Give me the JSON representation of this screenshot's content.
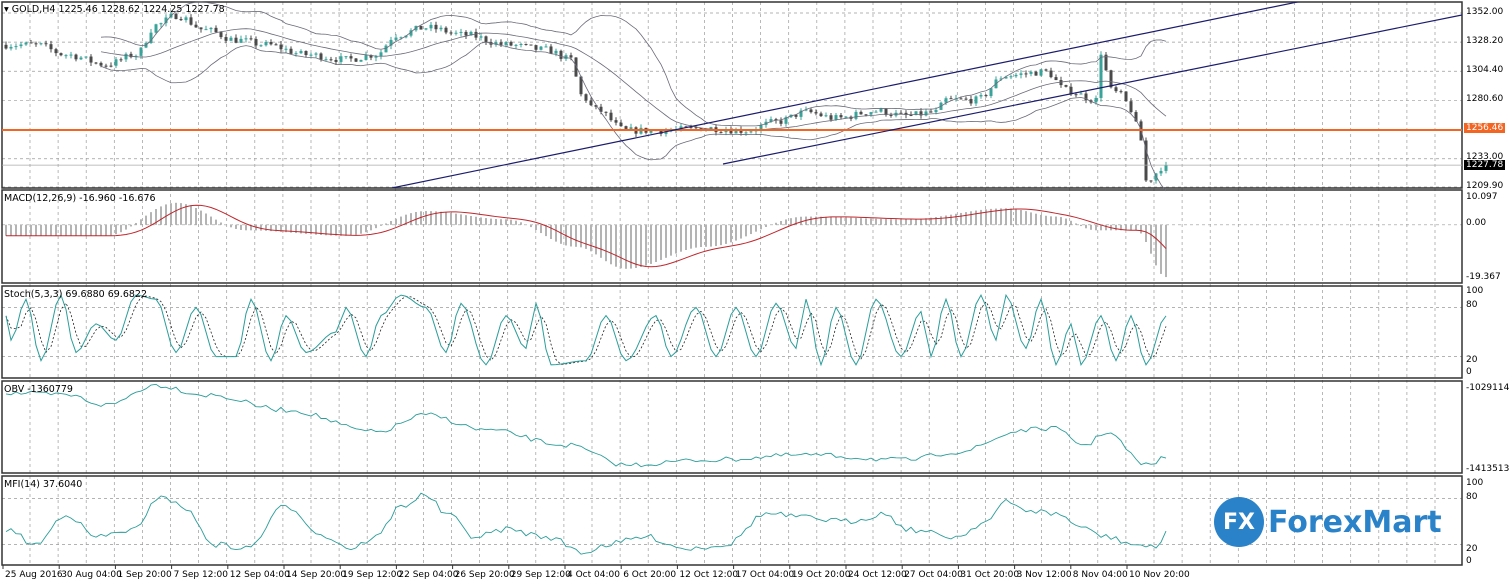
{
  "header": {
    "symbol_label": "GOLD,H4",
    "ohlc": "1225.46 1228.62 1224.25 1227.78"
  },
  "colors": {
    "bull": "#3aa39a",
    "bear": "#4a4a4a",
    "support": "#f26522",
    "trendline": "#1c1c6e",
    "bands": "#6a6a7a",
    "macd_hist": "#b4b4b4",
    "macd_signal": "#c0262c",
    "osc": "#2a9d9a",
    "brand": "#2a82c8"
  },
  "indicators": {
    "macd": "MACD(12,26,9) -16.960 -16.676",
    "stoch": "Stoch(5,3,3) 69.6880 69.6822",
    "obv": "OBV -1360779",
    "mfi": "MFI(14) 37.6040"
  },
  "price_axis": {
    "ticks": [
      "1352.00",
      "1328.20",
      "1304.40",
      "1280.60",
      "1233.00",
      "1209.90"
    ],
    "support_label": "1256.46",
    "current_label": "1227.78"
  },
  "macd_axis": {
    "ticks": [
      "10.097",
      "0.00",
      "-19.367"
    ]
  },
  "stoch_axis": {
    "ticks": [
      "100",
      "80",
      "20",
      "0"
    ]
  },
  "obv_axis": {
    "ticks": [
      "-1029114",
      "-1413513"
    ]
  },
  "mfi_axis": {
    "ticks": [
      "100",
      "80",
      "20",
      "0"
    ]
  },
  "time_axis": {
    "labels": [
      "25 Aug 2016",
      "30 Aug 04:00",
      "1 Sep 20:00",
      "7 Sep 12:00",
      "12 Sep 04:00",
      "14 Sep 20:00",
      "19 Sep 12:00",
      "22 Sep 04:00",
      "26 Sep 20:00",
      "29 Sep 12:00",
      "4 Oct 04:00",
      "6 Oct 20:00",
      "12 Oct 12:00",
      "17 Oct 04:00",
      "19 Oct 20:00",
      "24 Oct 12:00",
      "27 Oct 04:00",
      "31 Oct 20:00",
      "3 Nov 12:00",
      "8 Nov 04:00",
      "10 Nov 20:00"
    ]
  },
  "logo": {
    "mark": "FX",
    "text": "ForexMart"
  },
  "chart_data": {
    "type": "candlestick",
    "title": "GOLD,H4",
    "bars": 233,
    "ylim": [
      1209.9,
      1352.0
    ],
    "grid": true,
    "close_path": [
      [
        0,
        1326
      ],
      [
        6,
        1326
      ],
      [
        12,
        1318
      ],
      [
        20,
        1310
      ],
      [
        26,
        1318
      ],
      [
        30,
        1342
      ],
      [
        34,
        1350
      ],
      [
        40,
        1338
      ],
      [
        46,
        1330
      ],
      [
        52,
        1326
      ],
      [
        60,
        1318
      ],
      [
        68,
        1314
      ],
      [
        74,
        1318
      ],
      [
        78,
        1334
      ],
      [
        84,
        1340
      ],
      [
        92,
        1334
      ],
      [
        100,
        1326
      ],
      [
        108,
        1322
      ],
      [
        113,
        1314
      ],
      [
        115,
        1285
      ],
      [
        118,
        1273
      ],
      [
        124,
        1256
      ],
      [
        132,
        1256
      ],
      [
        140,
        1258
      ],
      [
        148,
        1256
      ],
      [
        154,
        1263
      ],
      [
        160,
        1271
      ],
      [
        166,
        1266
      ],
      [
        174,
        1272
      ],
      [
        180,
        1268
      ],
      [
        186,
        1271
      ],
      [
        188,
        1281
      ],
      [
        194,
        1281
      ],
      [
        200,
        1301
      ],
      [
        208,
        1304
      ],
      [
        212,
        1289
      ],
      [
        218,
        1281
      ],
      [
        219,
        1320
      ],
      [
        221,
        1289
      ],
      [
        223,
        1285
      ],
      [
        225,
        1273
      ],
      [
        227,
        1248
      ],
      [
        228,
        1215
      ],
      [
        232,
        1227.78
      ]
    ],
    "support_level": 1256.46,
    "trendlines": [
      [
        [
          77.2,
          1209.1
        ],
        [
          260.2,
          1362.6
        ]
      ],
      [
        [
          143.4,
          1228.7
        ],
        [
          291.2,
          1350.4
        ]
      ]
    ],
    "macd": {
      "ylim": [
        -19.367,
        10.097
      ],
      "path": [
        [
          0,
          -4
        ],
        [
          20,
          -4
        ],
        [
          34,
          8
        ],
        [
          48,
          -2
        ],
        [
          68,
          -4
        ],
        [
          84,
          5
        ],
        [
          100,
          2
        ],
        [
          114,
          -8
        ],
        [
          124,
          -16
        ],
        [
          140,
          -8
        ],
        [
          160,
          3
        ],
        [
          180,
          2
        ],
        [
          200,
          6
        ],
        [
          210,
          3
        ],
        [
          218,
          -2
        ],
        [
          226,
          -2
        ],
        [
          232,
          -19
        ]
      ],
      "last": [
        -16.96,
        -16.676
      ]
    },
    "stoch": {
      "ylim": [
        0,
        100
      ],
      "levels": [
        20,
        80
      ],
      "path": [
        [
          1,
          40
        ],
        [
          4,
          90
        ],
        [
          7,
          15
        ],
        [
          11,
          95
        ],
        [
          14,
          25
        ],
        [
          18,
          60
        ],
        [
          22,
          40
        ],
        [
          26,
          95
        ],
        [
          30,
          90
        ],
        [
          34,
          25
        ],
        [
          38,
          80
        ],
        [
          42,
          20
        ],
        [
          46,
          20
        ],
        [
          49,
          90
        ],
        [
          53,
          15
        ],
        [
          56,
          70
        ],
        [
          60,
          25
        ],
        [
          66,
          50
        ],
        [
          68,
          80
        ],
        [
          72,
          20
        ],
        [
          75,
          70
        ],
        [
          79,
          95
        ],
        [
          84,
          80
        ],
        [
          88,
          25
        ],
        [
          91,
          85
        ],
        [
          96,
          10
        ],
        [
          100,
          70
        ],
        [
          104,
          30
        ],
        [
          106,
          85
        ],
        [
          109,
          10
        ],
        [
          116,
          15
        ],
        [
          120,
          70
        ],
        [
          124,
          15
        ],
        [
          130,
          70
        ],
        [
          133,
          20
        ],
        [
          138,
          80
        ],
        [
          142,
          20
        ],
        [
          146,
          80
        ],
        [
          150,
          20
        ],
        [
          154,
          85
        ],
        [
          158,
          30
        ],
        [
          160,
          90
        ],
        [
          163,
          10
        ],
        [
          166,
          80
        ],
        [
          170,
          10
        ],
        [
          174,
          90
        ],
        [
          179,
          20
        ],
        [
          183,
          75
        ],
        [
          185,
          20
        ],
        [
          188,
          90
        ],
        [
          191,
          20
        ],
        [
          195,
          95
        ],
        [
          198,
          40
        ],
        [
          200,
          95
        ],
        [
          204,
          30
        ],
        [
          207,
          90
        ],
        [
          210,
          10
        ],
        [
          213,
          60
        ],
        [
          215,
          10
        ],
        [
          219,
          70
        ],
        [
          222,
          15
        ],
        [
          225,
          70
        ],
        [
          228,
          10
        ],
        [
          232,
          69.69
        ]
      ]
    },
    "obv": {
      "ylim": [
        -1413513,
        -1029114
      ],
      "path": [
        [
          0,
          -1073300
        ],
        [
          12,
          -1082100
        ],
        [
          20,
          -1126300
        ],
        [
          30,
          -1038000
        ],
        [
          40,
          -1082100
        ],
        [
          56,
          -1148400
        ],
        [
          74,
          -1245600
        ],
        [
          84,
          -1170500
        ],
        [
          96,
          -1236800
        ],
        [
          112,
          -1303000
        ],
        [
          124,
          -1391400
        ],
        [
          140,
          -1369300
        ],
        [
          160,
          -1347200
        ],
        [
          180,
          -1369300
        ],
        [
          190,
          -1334000
        ],
        [
          204,
          -1236800
        ],
        [
          209,
          -1228000
        ],
        [
          216,
          -1303000
        ],
        [
          220,
          -1245600
        ],
        [
          228,
          -1391400
        ],
        [
          232,
          -1360779
        ]
      ]
    },
    "mfi": {
      "ylim": [
        0,
        100
      ],
      "levels": [
        20,
        80
      ],
      "path": [
        [
          0,
          40
        ],
        [
          6,
          20
        ],
        [
          12,
          60
        ],
        [
          18,
          30
        ],
        [
          26,
          40
        ],
        [
          31,
          85
        ],
        [
          35,
          70
        ],
        [
          42,
          20
        ],
        [
          48,
          15
        ],
        [
          56,
          70
        ],
        [
          64,
          30
        ],
        [
          69,
          15
        ],
        [
          74,
          30
        ],
        [
          79,
          70
        ],
        [
          84,
          85
        ],
        [
          88,
          60
        ],
        [
          94,
          30
        ],
        [
          100,
          40
        ],
        [
          108,
          30
        ],
        [
          116,
          10
        ],
        [
          120,
          20
        ],
        [
          128,
          30
        ],
        [
          136,
          15
        ],
        [
          144,
          20
        ],
        [
          152,
          60
        ],
        [
          160,
          55
        ],
        [
          168,
          50
        ],
        [
          176,
          60
        ],
        [
          180,
          40
        ],
        [
          190,
          30
        ],
        [
          196,
          50
        ],
        [
          200,
          75
        ],
        [
          204,
          65
        ],
        [
          210,
          60
        ],
        [
          216,
          40
        ],
        [
          220,
          30
        ],
        [
          226,
          20
        ],
        [
          230,
          15
        ],
        [
          232,
          37.6
        ]
      ]
    }
  }
}
